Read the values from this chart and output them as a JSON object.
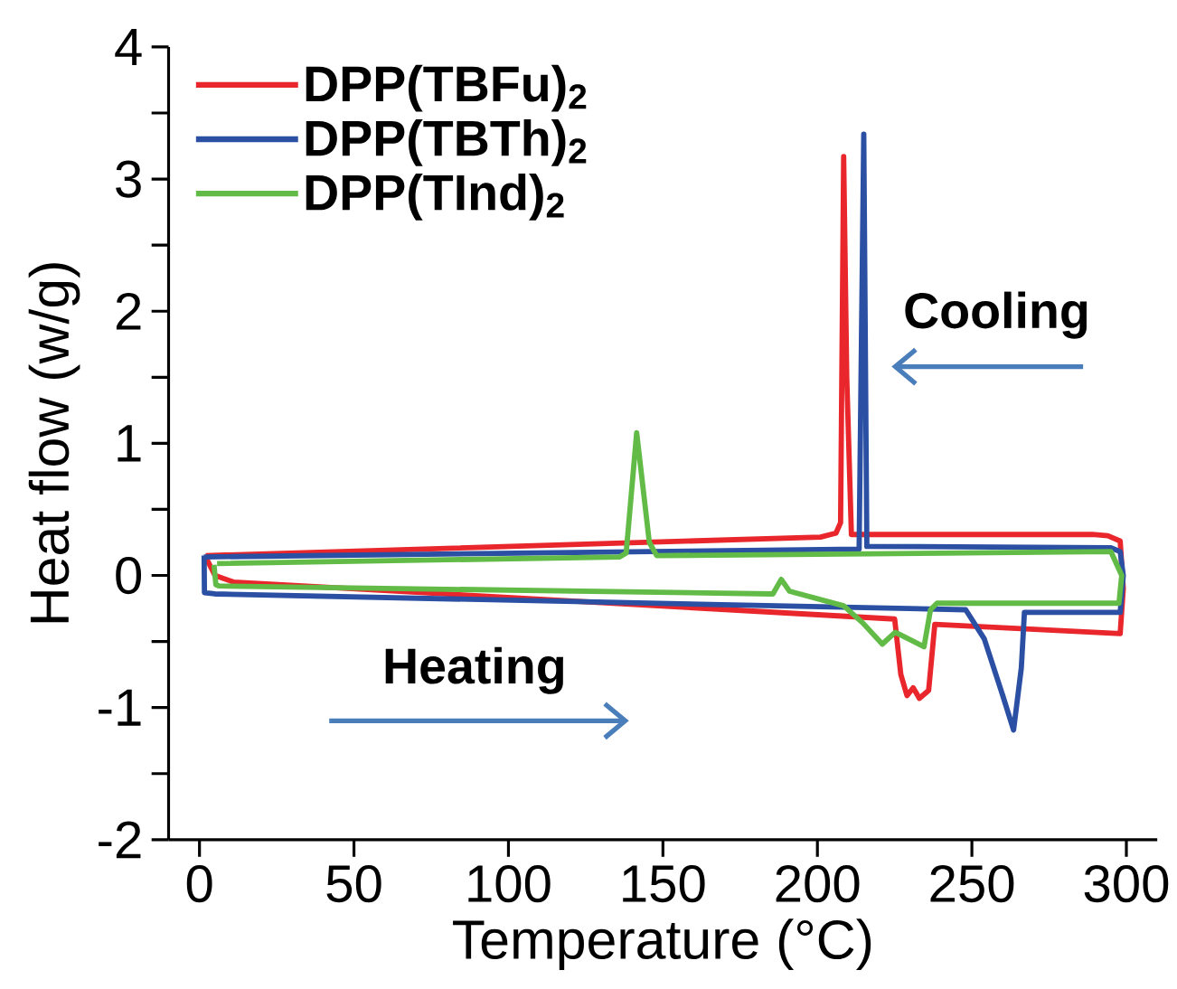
{
  "chart_data": {
    "type": "line",
    "xlabel": "Temperature (°C)",
    "ylabel": "Heat flow (w/g)",
    "xlim": [
      -10,
      310
    ],
    "ylim": [
      -2,
      4
    ],
    "xticks": [
      0,
      50,
      100,
      150,
      200,
      250,
      300
    ],
    "yticks": [
      -2,
      {
        "value": -1.5,
        "label": null
      },
      -1,
      {
        "value": -0.5,
        "label": null
      },
      0,
      {
        "value": 0.5,
        "label": null
      },
      1,
      {
        "value": 1.5,
        "label": null
      },
      2,
      {
        "value": 2.5,
        "label": null
      },
      3,
      {
        "value": 3.5,
        "label": null
      },
      4
    ],
    "grid": false,
    "legend": "top left",
    "marker": "none",
    "line_style": "solid",
    "annotations": [
      "Cooling",
      "Heating"
    ],
    "series": [
      {
        "name": "DPP(TBFu)$_{2}$",
        "color": "#e8262b",
        "x": [
          2,
          5,
          11,
          225,
          227,
          229,
          231,
          233,
          236,
          238,
          298,
          299,
          298,
          294,
          289,
          211,
          209.5,
          208.5,
          207.5,
          206,
          201,
          2
        ],
        "values": [
          0.14,
          0.0,
          -0.05,
          -0.33,
          -0.75,
          -0.91,
          -0.85,
          -0.93,
          -0.87,
          -0.37,
          -0.44,
          -0.1,
          0.26,
          0.3,
          0.31,
          0.31,
          1.5,
          3.17,
          0.4,
          0.32,
          0.29,
          0.15
        ]
      },
      {
        "name": "DPP(TBTh)$_{2}$",
        "color": "#2a4fa3",
        "x": [
          1.5,
          1.6,
          5,
          248,
          254,
          260,
          263.5,
          266,
          267,
          298,
          299,
          298,
          295,
          216,
          215,
          213.5,
          1.4
        ],
        "values": [
          0.15,
          -0.13,
          -0.14,
          -0.26,
          -0.48,
          -0.91,
          -1.17,
          -0.7,
          -0.28,
          -0.28,
          0.0,
          0.18,
          0.21,
          0.22,
          3.34,
          0.2,
          0.14
        ]
      },
      {
        "name": "DPP(TInd)$_{2}$",
        "color": "#62bb46",
        "x": [
          4.7,
          5.3,
          6.4,
          185.6,
          188.3,
          191,
          208.5,
          214.7,
          221,
          225.2,
          234.5,
          236.6,
          238.7,
          297.6,
          298.5,
          295,
          148,
          145.6,
          141.5,
          138.1,
          136,
          5.7
        ],
        "values": [
          0.08,
          -0.07,
          -0.08,
          -0.14,
          -0.03,
          -0.12,
          -0.23,
          -0.36,
          -0.52,
          -0.43,
          -0.54,
          -0.26,
          -0.21,
          -0.21,
          0.0,
          0.18,
          0.15,
          0.25,
          1.08,
          0.17,
          0.14,
          0.09
        ]
      }
    ]
  }
}
